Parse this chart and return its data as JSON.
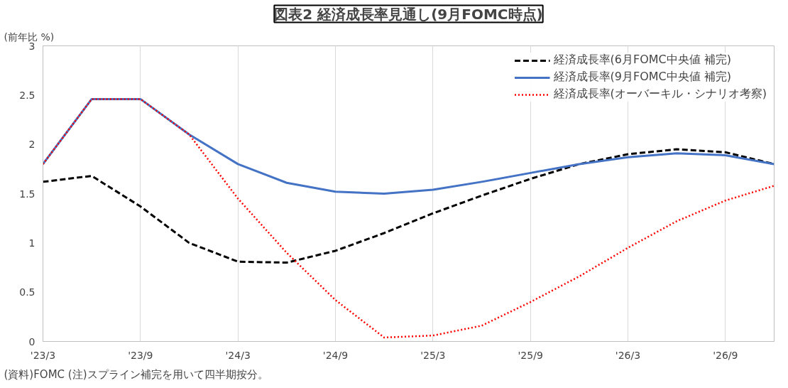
{
  "chart_data": {
    "type": "line",
    "title": "図表2 経済成長率見通し(9月FOMC時点)",
    "ylabel": "(前年比 %)",
    "categories": [
      "'23/3",
      null,
      "'23/9",
      null,
      "'24/3",
      null,
      "'24/9",
      null,
      "'25/3",
      null,
      "'25/9",
      null,
      "'26/3",
      null,
      "'26/9",
      null
    ],
    "ylim": [
      0,
      3
    ],
    "yticks": [
      0,
      0.5,
      1,
      1.5,
      2,
      2.5,
      3
    ],
    "grid": "x",
    "legend": "top right",
    "series": [
      {
        "name": "経済成長率(6月FOMC中央値 補完)",
        "color": "#000000",
        "line_style": "dashed",
        "values": [
          1.62,
          1.68,
          1.37,
          1.0,
          0.81,
          0.8,
          0.92,
          1.1,
          1.3,
          1.48,
          1.65,
          1.8,
          1.9,
          1.95,
          1.92,
          1.8
        ]
      },
      {
        "name": "経済成長率(9月FOMC中央値 補完)",
        "color": "#4472c4",
        "line_style": "solid",
        "values": [
          1.8,
          2.46,
          2.46,
          2.1,
          1.8,
          1.61,
          1.52,
          1.5,
          1.54,
          1.62,
          1.71,
          1.8,
          1.87,
          1.91,
          1.89,
          1.8
        ]
      },
      {
        "name": "経済成長率(オーバーキル・シナリオ考察)",
        "color": "#ff0000",
        "line_style": "dotted",
        "values": [
          1.8,
          2.46,
          2.46,
          2.1,
          1.45,
          0.9,
          0.42,
          0.04,
          0.06,
          0.16,
          0.4,
          0.66,
          0.95,
          1.22,
          1.43,
          1.58
        ]
      }
    ],
    "annotations": [
      "(資料)FOMC (注)スプライン補完を用いて四半期按分。"
    ]
  }
}
